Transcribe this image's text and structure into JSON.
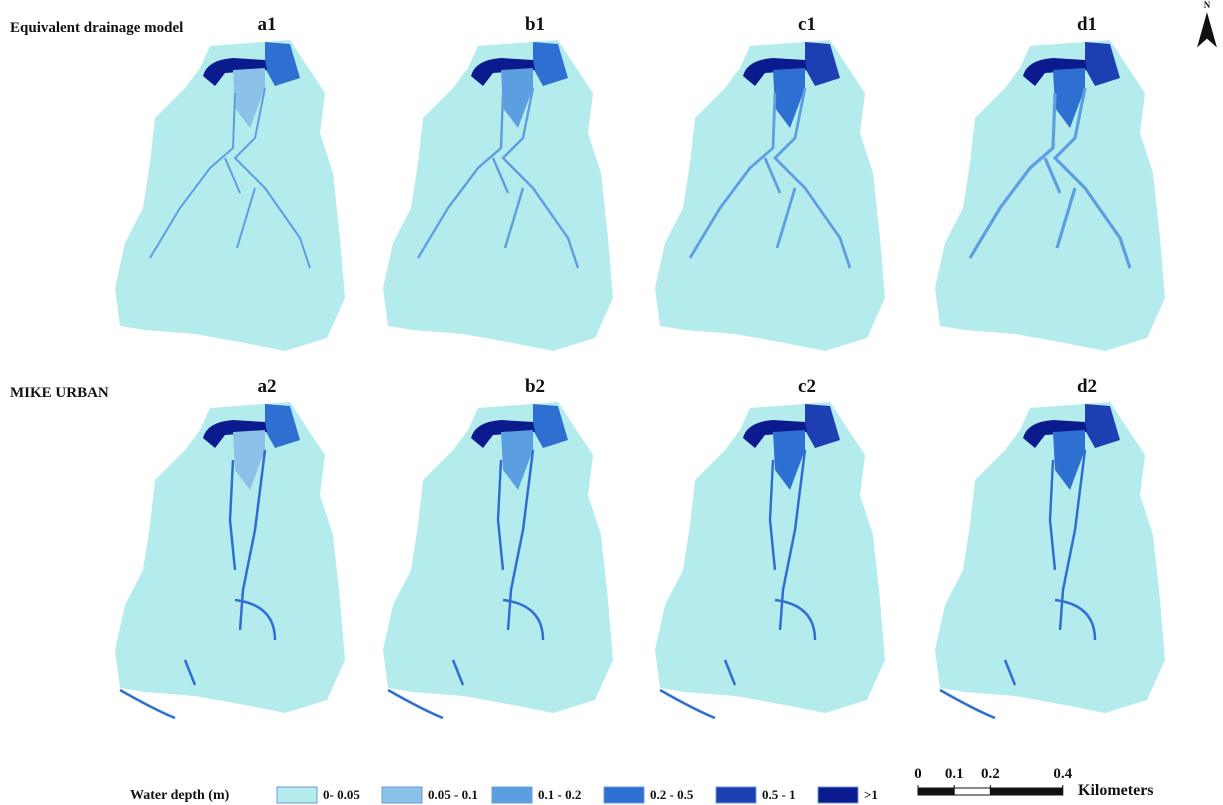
{
  "row_labels": [
    "Equivalent drainage model",
    "MIKE URBAN"
  ],
  "panels": [
    [
      "a1",
      "b1",
      "c1",
      "d1"
    ],
    [
      "a2",
      "b2",
      "c2",
      "d2"
    ]
  ],
  "north": "N",
  "legend": {
    "title": "Water depth (m)",
    "classes": [
      {
        "label": "0- 0.05",
        "color": "#b4ecee"
      },
      {
        "label": "0.05 - 0.1",
        "color": "#8cc2e9"
      },
      {
        "label": "0.1 - 0.2",
        "color": "#5c9fe1"
      },
      {
        "label": "0.2 - 0.5",
        "color": "#2e6fd2"
      },
      {
        "label": "0.5 - 1",
        "color": "#1e3fb2"
      },
      {
        "label": ">1",
        "color": "#0b1a8c"
      }
    ]
  },
  "scale_bar": {
    "ticks": [
      0,
      0.1,
      0.2,
      0.4
    ],
    "unit": "Kilometers"
  }
}
